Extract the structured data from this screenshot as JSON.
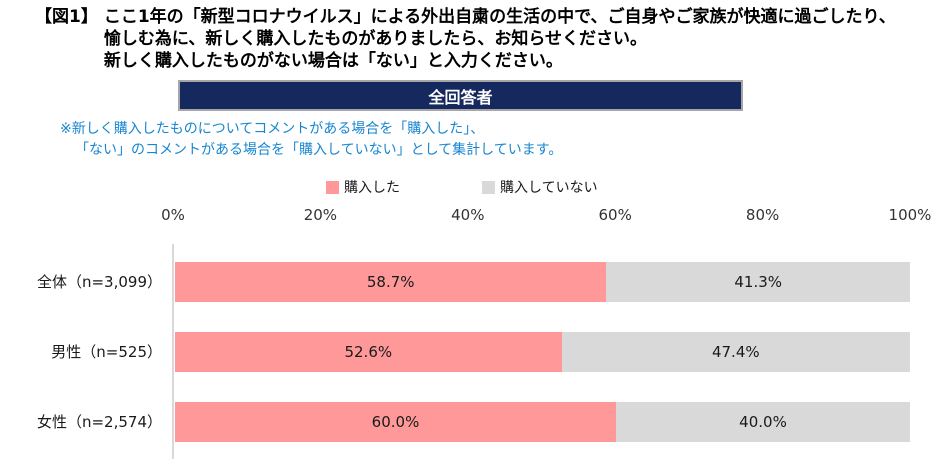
{
  "header": {
    "figure_label": "【図1】",
    "title_lines": [
      "ここ1年の「新型コロナウイルス」による外出自粛の生活の中で、ご自身やご家族が快適に過ごしたり、",
      "愉しむ為に、新しく購入したものがありましたら、お知らせください。",
      "新しく購入したものがない場合は「ない」と入力ください。"
    ]
  },
  "banner": {
    "label": "全回答者",
    "background_color": "#16295E",
    "border_color": "#A6A6A6"
  },
  "note": {
    "text_color": "#1786D0",
    "lines": [
      "※新しく購入したものについてコメントがある場合を「購入した」、",
      "「ない」のコメントがある場合を「購入していない」として集計しています。"
    ]
  },
  "chart_data": {
    "type": "bar",
    "orientation": "horizontal",
    "stacked": true,
    "categories": [
      "全体（n=3,099）",
      "男性（n=525）",
      "女性（n=2,574）"
    ],
    "series": [
      {
        "name": "購入した",
        "color": "#FF9999",
        "values": [
          58.7,
          52.6,
          60.0
        ]
      },
      {
        "name": "購入していない",
        "color": "#D9D9D9",
        "values": [
          41.3,
          47.4,
          40.0
        ]
      }
    ],
    "value_labels": [
      [
        "58.7%",
        "41.3%"
      ],
      [
        "52.6%",
        "47.4%"
      ],
      [
        "60.0%",
        "40.0%"
      ]
    ],
    "x_ticks": [
      "0%",
      "20%",
      "40%",
      "60%",
      "80%",
      "100%"
    ],
    "xlim": [
      0,
      100
    ],
    "legend_position": "top",
    "grid": false,
    "axis_line_color": "#D9D9D9"
  }
}
